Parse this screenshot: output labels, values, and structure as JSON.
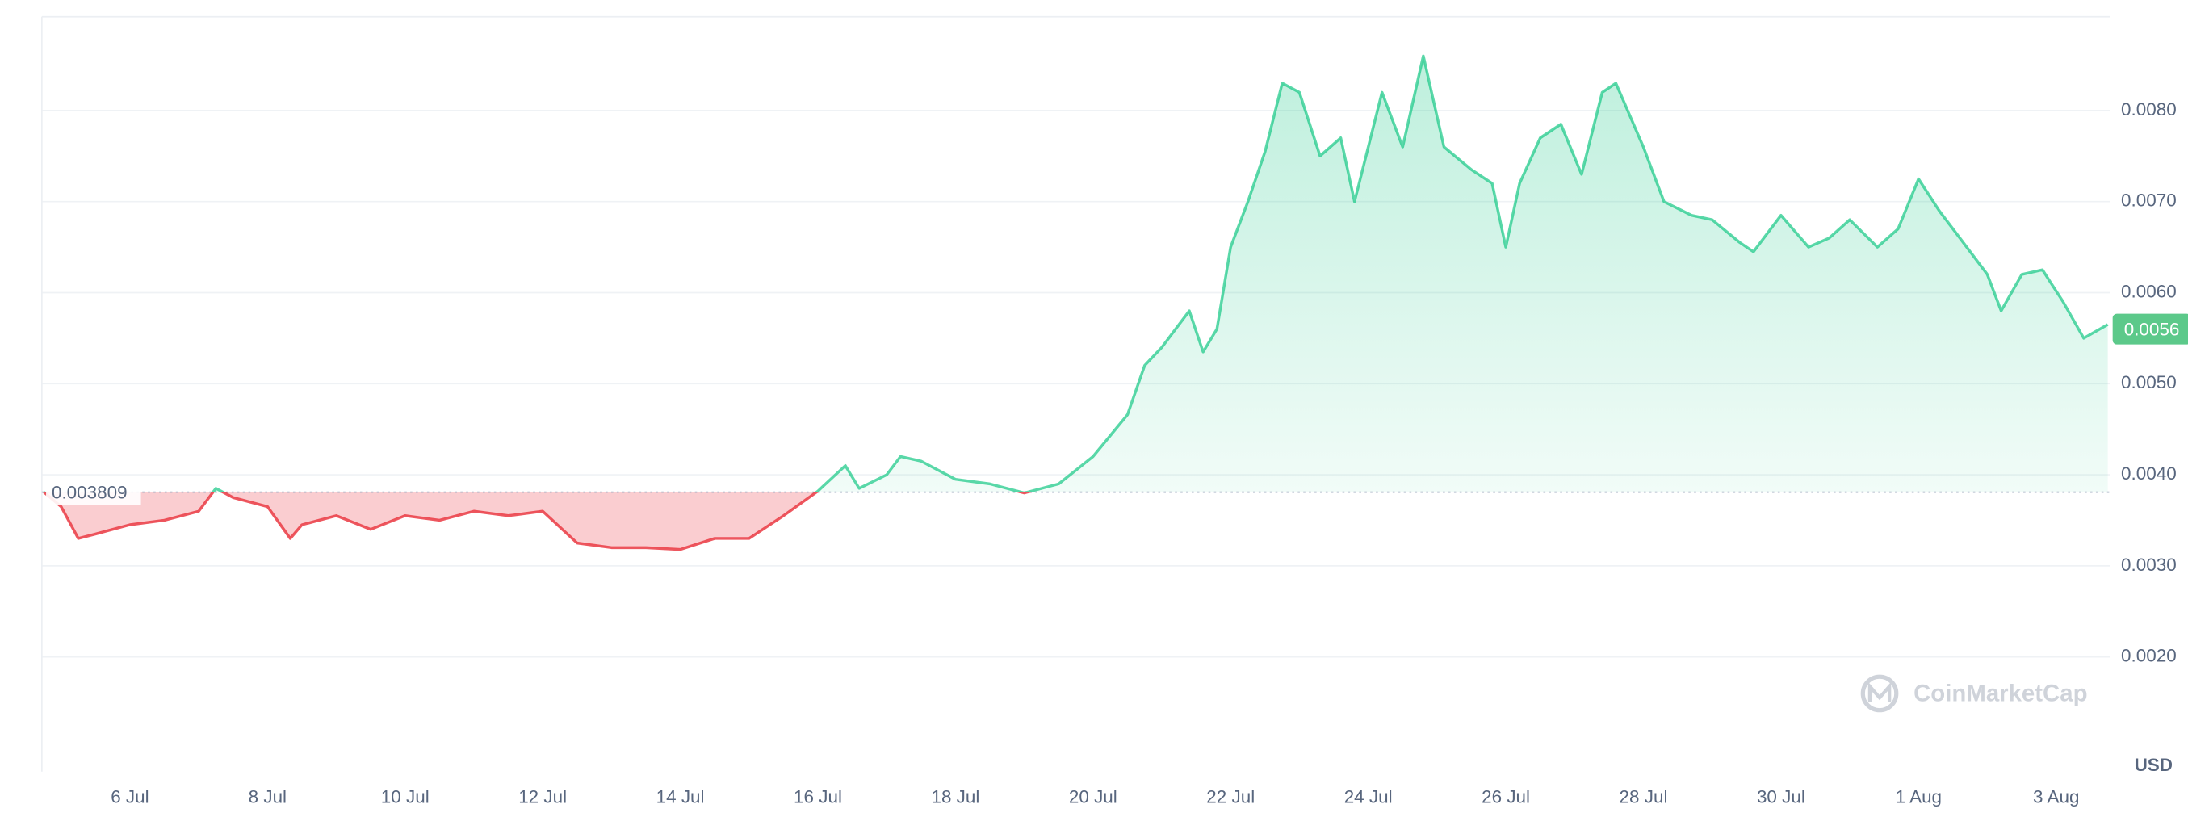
{
  "chart_data": {
    "type": "line",
    "x": [
      4.75,
      5.0,
      5.25,
      5.5,
      6.0,
      6.5,
      7.0,
      7.25,
      7.5,
      8.0,
      8.33,
      8.5,
      9.0,
      9.5,
      10.0,
      10.5,
      11.0,
      11.5,
      12.0,
      12.5,
      13.0,
      13.5,
      14.0,
      14.5,
      15.0,
      15.5,
      16.0,
      16.4,
      16.6,
      17.0,
      17.2,
      17.5,
      18.0,
      18.5,
      19.0,
      19.5,
      20.0,
      20.5,
      20.75,
      21.0,
      21.4,
      21.6,
      21.8,
      22.0,
      22.25,
      22.5,
      22.75,
      23.0,
      23.3,
      23.6,
      23.8,
      24.2,
      24.5,
      24.8,
      25.1,
      25.5,
      25.8,
      26.0,
      26.2,
      26.5,
      26.8,
      27.1,
      27.4,
      27.6,
      28.0,
      28.3,
      28.7,
      29.0,
      29.4,
      29.6,
      30.0,
      30.4,
      30.7,
      31.0,
      31.4,
      31.7,
      32.0,
      32.3,
      32.6,
      33.0,
      33.2,
      33.5,
      33.8,
      34.1,
      34.4,
      34.75
    ],
    "series": [
      {
        "color": "#16c784",
        "negative_color": "#ea3943",
        "values": [
          0.00381,
          0.00365,
          0.0033,
          0.00335,
          0.00345,
          0.0035,
          0.0036,
          0.00385,
          0.00375,
          0.00365,
          0.0033,
          0.00345,
          0.00355,
          0.0034,
          0.00355,
          0.0035,
          0.0036,
          0.00355,
          0.0036,
          0.00325,
          0.0032,
          0.0032,
          0.00318,
          0.0033,
          0.0033,
          0.00355,
          0.00382,
          0.0041,
          0.00385,
          0.004,
          0.0042,
          0.00415,
          0.00395,
          0.0039,
          0.0038,
          0.0039,
          0.0042,
          0.00466,
          0.0052,
          0.0054,
          0.0058,
          0.00535,
          0.0056,
          0.0065,
          0.007,
          0.00755,
          0.0083,
          0.0082,
          0.0075,
          0.0077,
          0.007,
          0.0082,
          0.0076,
          0.0086,
          0.0076,
          0.00735,
          0.0072,
          0.0065,
          0.0072,
          0.0077,
          0.00785,
          0.0073,
          0.0082,
          0.0083,
          0.0076,
          0.007,
          0.00685,
          0.0068,
          0.00655,
          0.00645,
          0.00685,
          0.0065,
          0.0066,
          0.0068,
          0.0065,
          0.0067,
          0.00725,
          0.0069,
          0.0066,
          0.0062,
          0.0058,
          0.0062,
          0.00625,
          0.0059,
          0.0055,
          0.00565
        ]
      }
    ],
    "baseline": 0.003809,
    "current_price": 0.0056,
    "currency": "USD",
    "watermark": "CoinMarketCap",
    "xlim": [
      4.72,
      34.78
    ],
    "xticks": [
      {
        "value": 6,
        "label": "6 Jul"
      },
      {
        "value": 8,
        "label": "8 Jul"
      },
      {
        "value": 10,
        "label": "10 Jul"
      },
      {
        "value": 12,
        "label": "12 Jul"
      },
      {
        "value": 14,
        "label": "14 Jul"
      },
      {
        "value": 16,
        "label": "16 Jul"
      },
      {
        "value": 18,
        "label": "18 Jul"
      },
      {
        "value": 20,
        "label": "20 Jul"
      },
      {
        "value": 22,
        "label": "22 Jul"
      },
      {
        "value": 24,
        "label": "24 Jul"
      },
      {
        "value": 26,
        "label": "26 Jul"
      },
      {
        "value": 28,
        "label": "28 Jul"
      },
      {
        "value": 30,
        "label": "30 Jul"
      },
      {
        "value": 32,
        "label": "1 Aug"
      },
      {
        "value": 34,
        "label": "3 Aug"
      }
    ],
    "ylim": [
      0.00074,
      0.00903
    ],
    "yticks": [
      {
        "value": 0.002,
        "label": "0.0020"
      },
      {
        "value": 0.003,
        "label": "0.0030"
      },
      {
        "value": 0.004,
        "label": "0.0040"
      },
      {
        "value": 0.005,
        "label": "0.0050"
      },
      {
        "value": 0.006,
        "label": "0.0060"
      },
      {
        "value": 0.007,
        "label": "0.0070"
      },
      {
        "value": 0.008,
        "label": "0.0080"
      }
    ],
    "grid": true
  }
}
